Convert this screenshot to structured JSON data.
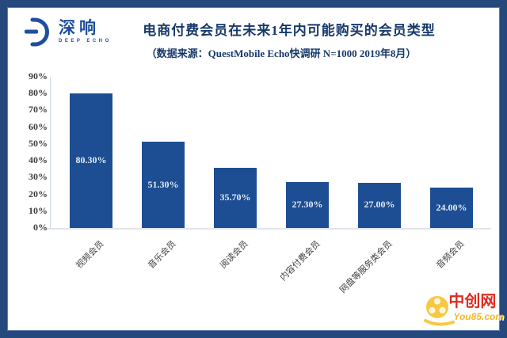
{
  "logo": {
    "name": "深响",
    "subname": "DEEP ECHO"
  },
  "header": {
    "title": "电商付费会员在未来1年内可能购买的会员类型",
    "subtitle": "（数据来源：QuestMobile Echo快调研 N=1000 2019年8月）"
  },
  "chart_data": {
    "type": "bar",
    "title": "电商付费会员在未来1年内可能购买的会员类型",
    "source_note": "（数据来源：QuestMobile Echo快调研 N=1000 2019年8月）",
    "categories": [
      "视频会员",
      "音乐会员",
      "阅读会员",
      "内容付费会员",
      "网盘等服务类会员",
      "音频会员"
    ],
    "values": [
      80.3,
      51.3,
      35.7,
      27.3,
      27.0,
      24.0
    ],
    "value_labels": [
      "80.30%",
      "51.30%",
      "35.70%",
      "27.30%",
      "27.00%",
      "24.00%"
    ],
    "y_ticks": [
      "90%",
      "80%",
      "70%",
      "60%",
      "50%",
      "40%",
      "30%",
      "20%",
      "10%",
      "0%"
    ],
    "ylim": [
      0,
      90
    ],
    "xlabel": "",
    "ylabel": "",
    "grid": false,
    "legend": "none",
    "bar_color": "#1d4e94",
    "value_label_color": "#e3ebf5"
  },
  "watermark": {
    "site_name": "中创网",
    "site_url": "You85.com"
  },
  "colors": {
    "frame": "#26497d",
    "title_text": "#17396b",
    "logo_blue": "#1e4f9e",
    "watermark_red": "#e02b20",
    "watermark_yellow": "#f0b929"
  }
}
